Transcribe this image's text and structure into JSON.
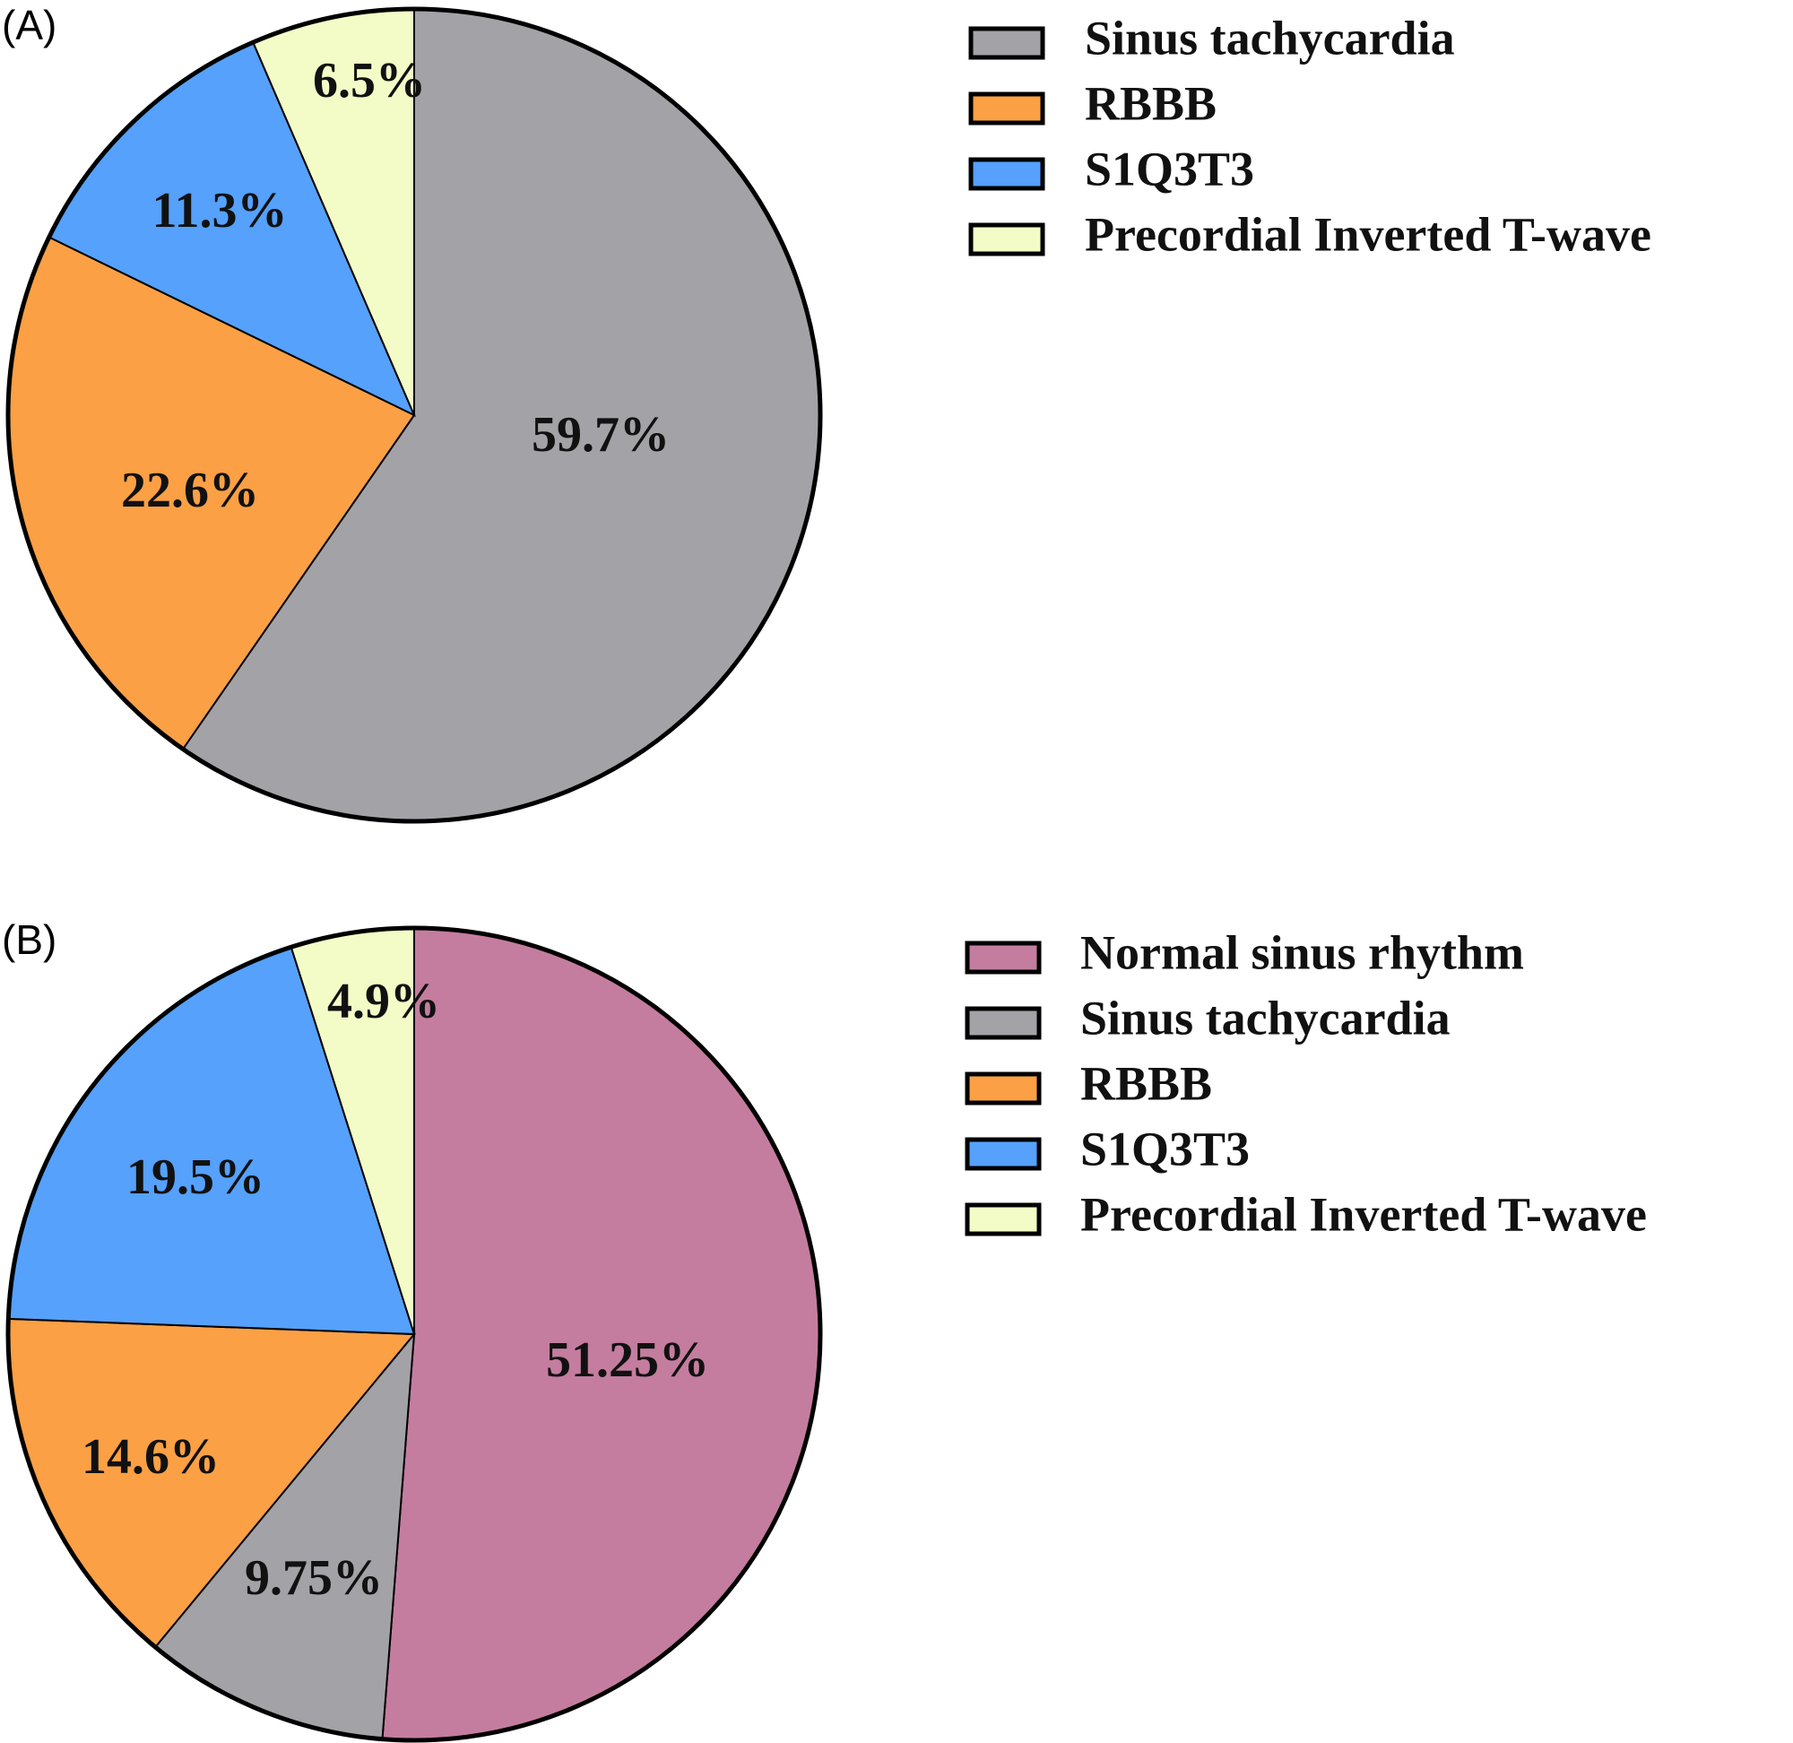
{
  "chart_data": [
    {
      "type": "pie",
      "panel_label": "(A)",
      "legend_position": "right",
      "slices": [
        {
          "name": "Sinus tachycardia",
          "value": 59.7,
          "label": "59.7%",
          "color": "#A3A2A7"
        },
        {
          "name": "RBBB",
          "value": 22.6,
          "label": "22.6%",
          "color": "#FBA045"
        },
        {
          "name": "S1Q3T3",
          "value": 11.3,
          "label": "11.3%",
          "color": "#55A1FC"
        },
        {
          "name": "Precordial Inverted T-wave",
          "value": 6.5,
          "label": "6.5%",
          "color": "#F3FCC6"
        }
      ]
    },
    {
      "type": "pie",
      "panel_label": "(B)",
      "legend_position": "right",
      "slices": [
        {
          "name": "Normal sinus rhythm",
          "value": 51.25,
          "label": "51.25%",
          "color": "#C47D9F"
        },
        {
          "name": "Sinus tachycardia",
          "value": 9.75,
          "label": "9.75%",
          "color": "#A3A2A7"
        },
        {
          "name": "RBBB",
          "value": 14.6,
          "label": "14.6%",
          "color": "#FBA045"
        },
        {
          "name": "S1Q3T3",
          "value": 19.5,
          "label": "19.5%",
          "color": "#55A1FC"
        },
        {
          "name": "Precordial Inverted T-wave",
          "value": 4.9,
          "label": "4.9%",
          "color": "#F3FCC6"
        }
      ]
    }
  ]
}
